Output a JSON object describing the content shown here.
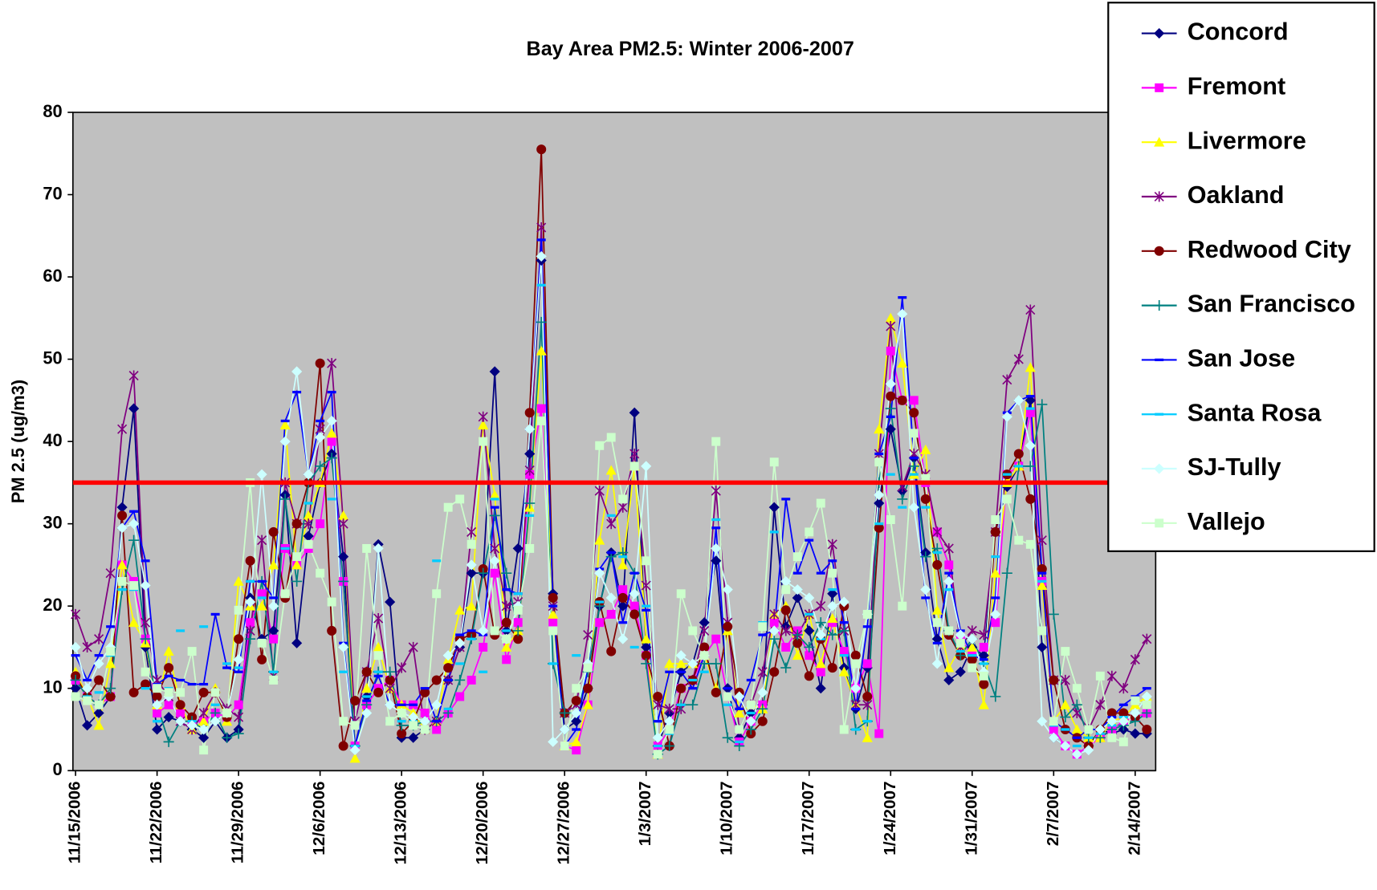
{
  "chart_data": {
    "type": "line",
    "title": "Bay Area PM2.5: Winter 2006-2007",
    "y_label": "PM 2.5 (ug/m3)",
    "categories": [
      "11/15/2006",
      null,
      null,
      null,
      null,
      null,
      null,
      "11/22/2006",
      null,
      null,
      null,
      null,
      null,
      null,
      "11/29/2006",
      null,
      null,
      null,
      null,
      null,
      null,
      "12/6/2006",
      null,
      null,
      null,
      null,
      null,
      null,
      "12/13/2006",
      null,
      null,
      null,
      null,
      null,
      null,
      "12/20/2006",
      null,
      null,
      null,
      null,
      null,
      null,
      "12/27/2006",
      null,
      null,
      null,
      null,
      null,
      null,
      "1/3/2007",
      null,
      null,
      null,
      null,
      null,
      null,
      "1/10/2007",
      null,
      null,
      null,
      null,
      null,
      null,
      "1/17/2007",
      null,
      null,
      null,
      null,
      null,
      null,
      "1/24/2007",
      null,
      null,
      null,
      null,
      null,
      null,
      "1/31/2007",
      null,
      null,
      null,
      null,
      null,
      null,
      "2/7/2007",
      null,
      null,
      null,
      null,
      null,
      null,
      "2/14/2007",
      null
    ],
    "ylim": [
      0,
      80
    ],
    "yticks": [
      0,
      10,
      20,
      30,
      40,
      50,
      60,
      70,
      80
    ],
    "threshold": 35,
    "threshold_color": "#ff0000",
    "legend": "right",
    "plot_background": "#c0c0c0",
    "series": [
      {
        "name": "Concord",
        "color": "#000080",
        "marker": "diamond",
        "values": [
          10,
          5.5,
          7,
          9,
          32,
          44,
          15,
          5,
          6.5,
          6,
          5,
          4,
          6,
          4,
          5,
          21,
          16,
          17,
          33.5,
          15.5,
          28.5,
          35,
          38.5,
          26,
          3,
          9,
          27.5,
          20.5,
          4,
          4,
          5,
          6,
          11,
          15,
          24,
          24,
          48.5,
          17,
          27,
          38.5,
          62,
          21.5,
          5,
          6,
          10,
          20,
          26.5,
          20,
          43.5,
          15,
          3,
          7,
          12,
          13,
          18,
          25.5,
          10,
          4,
          7,
          8,
          32,
          17.5,
          21,
          17,
          10,
          21.5,
          12.5,
          7.5,
          12.5,
          32.5,
          41.5,
          34,
          38,
          26.5,
          16,
          11,
          12,
          15,
          14,
          29,
          34.5,
          37,
          45,
          15,
          4,
          3,
          2,
          3,
          5,
          4.5,
          5,
          4.5,
          4.5
        ]
      },
      {
        "name": "Fremont",
        "color": "#ff00ff",
        "marker": "square",
        "values": [
          11,
          9,
          8,
          9,
          25,
          23,
          16,
          7,
          8,
          7,
          6,
          6,
          7,
          6.5,
          8,
          18,
          21.5,
          16,
          27,
          25,
          27,
          30,
          40,
          23,
          3,
          8,
          10,
          11,
          8,
          8,
          7,
          5,
          7,
          9,
          11,
          15,
          24,
          13.5,
          18,
          36,
          44,
          18,
          3,
          2.5,
          8,
          18,
          19,
          22,
          20,
          14,
          3,
          5,
          10,
          11,
          14,
          16,
          9,
          3.5,
          6,
          8,
          18,
          15,
          17,
          14,
          12,
          18,
          14.5,
          10,
          13,
          4.5,
          51,
          45,
          45,
          35,
          29,
          25,
          16,
          14,
          15,
          18,
          36,
          37,
          43.5,
          23,
          5,
          3,
          2,
          3,
          4,
          5,
          6,
          6.5,
          7
        ]
      },
      {
        "name": "Livermore",
        "color": "#ffff00",
        "marker": "triangle",
        "values": [
          12,
          9,
          5.5,
          13,
          25,
          18,
          15.5,
          8,
          14.5,
          8,
          5,
          6,
          10,
          6,
          23,
          20,
          20,
          25,
          42,
          25,
          31,
          35,
          41,
          31,
          1.5,
          10,
          15,
          10,
          8,
          7,
          5,
          6,
          13.5,
          19.5,
          20,
          42,
          33.5,
          15,
          17,
          32,
          51,
          19,
          3,
          3.5,
          8,
          28,
          36.5,
          25,
          37,
          16,
          2,
          13,
          13,
          13,
          14,
          10,
          17,
          7,
          8,
          7.5,
          19,
          20,
          14,
          19,
          13,
          18.5,
          12,
          8,
          4,
          41.5,
          55,
          49.5,
          36,
          39,
          19.5,
          12.5,
          15,
          15,
          8,
          24,
          35,
          37,
          49,
          22.5,
          6,
          8,
          5,
          4,
          4,
          6,
          6.5,
          8,
          9
        ]
      },
      {
        "name": "Oakland",
        "color": "#800080",
        "marker": "star",
        "values": [
          19,
          15,
          16,
          24,
          41.5,
          48,
          18,
          11,
          9,
          6,
          5,
          7,
          9.5,
          7.5,
          6.5,
          17,
          28,
          11.5,
          35,
          30,
          30,
          41.5,
          49.5,
          30,
          6,
          12,
          18.5,
          10,
          12.5,
          15,
          5,
          6,
          11,
          15,
          29,
          43,
          27,
          20,
          20.5,
          36.5,
          66,
          20,
          7,
          8,
          16.5,
          34,
          30,
          32,
          38.5,
          22.5,
          8,
          7.5,
          7.5,
          11,
          17,
          34,
          18,
          5,
          8,
          12,
          19,
          17,
          16.5,
          19,
          20,
          27.5,
          17,
          8,
          8,
          38.5,
          54,
          34.5,
          38.5,
          36,
          29,
          27,
          15,
          17,
          16.5,
          29,
          47.5,
          50,
          56,
          28,
          11,
          11,
          7,
          5,
          8,
          11.5,
          10,
          13.5,
          16
        ]
      },
      {
        "name": "Redwood City",
        "color": "#800000",
        "marker": "circle",
        "values": [
          11.5,
          9,
          11,
          9,
          31,
          9.5,
          10.5,
          9,
          12.5,
          8,
          6.5,
          9.5,
          9.5,
          6.5,
          16,
          25.5,
          13.5,
          29,
          21,
          30,
          35,
          49.5,
          17,
          3,
          8.5,
          12,
          9.5,
          11,
          4.5,
          6,
          9.5,
          11,
          12.5,
          16,
          16.5,
          24.5,
          16.5,
          18,
          16,
          43.5,
          75.5,
          21,
          7,
          8.5,
          10,
          20.5,
          14.5,
          21,
          19,
          14,
          9,
          3,
          10,
          11,
          15,
          9.5,
          17.5,
          9.5,
          4.5,
          6,
          12,
          19.5,
          15.5,
          11.5,
          16,
          12.5,
          20,
          14,
          9,
          29.5,
          45.5,
          45,
          43.5,
          33,
          25,
          16.5,
          14,
          13.5,
          10.5,
          29,
          36,
          38.5,
          33,
          24.5,
          11,
          5,
          4,
          3,
          5,
          7,
          7,
          6.5,
          5
        ]
      },
      {
        "name": "San Francisco",
        "color": "#008080",
        "marker": "plus",
        "values": [
          11,
          9,
          8,
          10,
          22,
          28,
          16,
          8,
          3.5,
          6,
          6,
          5,
          7,
          4,
          4.5,
          16,
          23,
          12,
          33,
          23,
          35,
          37,
          38,
          23,
          3,
          8,
          12,
          12,
          5.5,
          5.5,
          6,
          6,
          7,
          11,
          16,
          24,
          31,
          24,
          17,
          32.5,
          54.5,
          13,
          7,
          7,
          12,
          20,
          26,
          26.5,
          24,
          13,
          2,
          3,
          8,
          8,
          13,
          13,
          4,
          3,
          5,
          7.5,
          16,
          12.5,
          16.5,
          15,
          18,
          16.5,
          17,
          5,
          6,
          35,
          44,
          33,
          37,
          26,
          27,
          17,
          14,
          16,
          13,
          9,
          24,
          37,
          37,
          44.5,
          19,
          6.5,
          8,
          4,
          4,
          5,
          5.5,
          6,
          7
        ]
      },
      {
        "name": "San Jose",
        "color": "#0000ff",
        "marker": "dash",
        "values": [
          14,
          11,
          14,
          17.5,
          29.5,
          31.5,
          25.5,
          10.5,
          11.5,
          11,
          10.5,
          10.5,
          19,
          12.5,
          12,
          23,
          23,
          21,
          42.5,
          46,
          36,
          42.5,
          46,
          15.5,
          3,
          8.5,
          11.5,
          8,
          8,
          8,
          10,
          6,
          11,
          16.5,
          17,
          16.5,
          32,
          22,
          21.5,
          41.5,
          64.5,
          20,
          3,
          5,
          12.5,
          24.5,
          26.5,
          18,
          24,
          19.5,
          6,
          12,
          12,
          10,
          14,
          29.5,
          10,
          7.5,
          11,
          16.5,
          17,
          33,
          24,
          28,
          24,
          25.5,
          18,
          7.5,
          17.5,
          38.5,
          43,
          57.5,
          38,
          21,
          15.5,
          24,
          17,
          14,
          13.5,
          21,
          43.5,
          45,
          45.5,
          24,
          6,
          5,
          4,
          5,
          5,
          6.5,
          8,
          9,
          10
        ]
      },
      {
        "name": "Santa Rosa",
        "color": "#00ccff",
        "marker": "dash",
        "line": false,
        "values": [
          9,
          9,
          9.5,
          14,
          22,
          22,
          10,
          6,
          10,
          17,
          6,
          17.5,
          8,
          13,
          12.5,
          23,
          21,
          12,
          27,
          35,
          32.5,
          35,
          33,
          12,
          3,
          9,
          12,
          6,
          6,
          6,
          6,
          25.5,
          7.5,
          13,
          16,
          12,
          33,
          17,
          21.5,
          31,
          59,
          13,
          5,
          14,
          13,
          20.5,
          31,
          26,
          15,
          20,
          3,
          4.5,
          8,
          11,
          12,
          30.5,
          8,
          3.5,
          7,
          18,
          29,
          23,
          22,
          19,
          16,
          22,
          14,
          5,
          6,
          30,
          36,
          32,
          36,
          32,
          26.5,
          22,
          14.5,
          14,
          13,
          26,
          36,
          37,
          44,
          23,
          5.5,
          5,
          3,
          4,
          4.5,
          5.5,
          6.5,
          7,
          8
        ]
      },
      {
        "name": "SJ-Tully",
        "color": "#ccffff",
        "marker": "diamond",
        "values": [
          15,
          10,
          13,
          15,
          29.5,
          30,
          22.5,
          8,
          9,
          6,
          5.5,
          5,
          6,
          7,
          13.5,
          20.5,
          36,
          20,
          40,
          48.5,
          36,
          40.5,
          42.5,
          15,
          2.5,
          7,
          27,
          8,
          7,
          6.5,
          6,
          8,
          14,
          15.5,
          25,
          17,
          25.5,
          16,
          20,
          41.5,
          62.5,
          3.5,
          5,
          7,
          13,
          24,
          21,
          16,
          21.5,
          37,
          4,
          6,
          14,
          13,
          14,
          27,
          22,
          9,
          6,
          9.5,
          17,
          23,
          22,
          21,
          16.5,
          20,
          20.5,
          10,
          19,
          33.5,
          47,
          55.5,
          32,
          22,
          13,
          23,
          16.5,
          16,
          12,
          19,
          43,
          45,
          39.5,
          6,
          4,
          3,
          2,
          2.5,
          5,
          6,
          6,
          7,
          9
        ]
      },
      {
        "name": "Vallejo",
        "color": "#ccffcc",
        "marker": "square",
        "values": [
          9,
          8.5,
          8,
          14.5,
          23,
          22.5,
          12,
          10,
          9.5,
          9.5,
          14.5,
          2.5,
          9.5,
          7,
          19.5,
          35,
          15.5,
          11,
          21.5,
          26,
          27.5,
          24,
          20.5,
          6,
          5.5,
          27,
          14,
          6,
          7,
          5.5,
          5,
          21.5,
          32,
          33,
          27.5,
          40,
          17,
          16,
          19.5,
          27,
          42.5,
          17,
          3,
          10,
          12.5,
          39.5,
          40.5,
          33,
          37,
          25.5,
          2,
          5,
          21.5,
          17,
          14,
          40,
          9,
          5,
          8,
          17.5,
          37.5,
          22,
          26,
          29,
          32.5,
          24,
          5,
          13,
          19,
          37.5,
          30.5,
          20,
          41,
          35.5,
          18,
          17,
          15.5,
          12.5,
          11.5,
          30.5,
          33,
          28,
          27.5,
          17,
          6,
          14.5,
          10,
          5,
          11.5,
          4,
          3.5,
          8.5,
          8
        ]
      }
    ]
  }
}
